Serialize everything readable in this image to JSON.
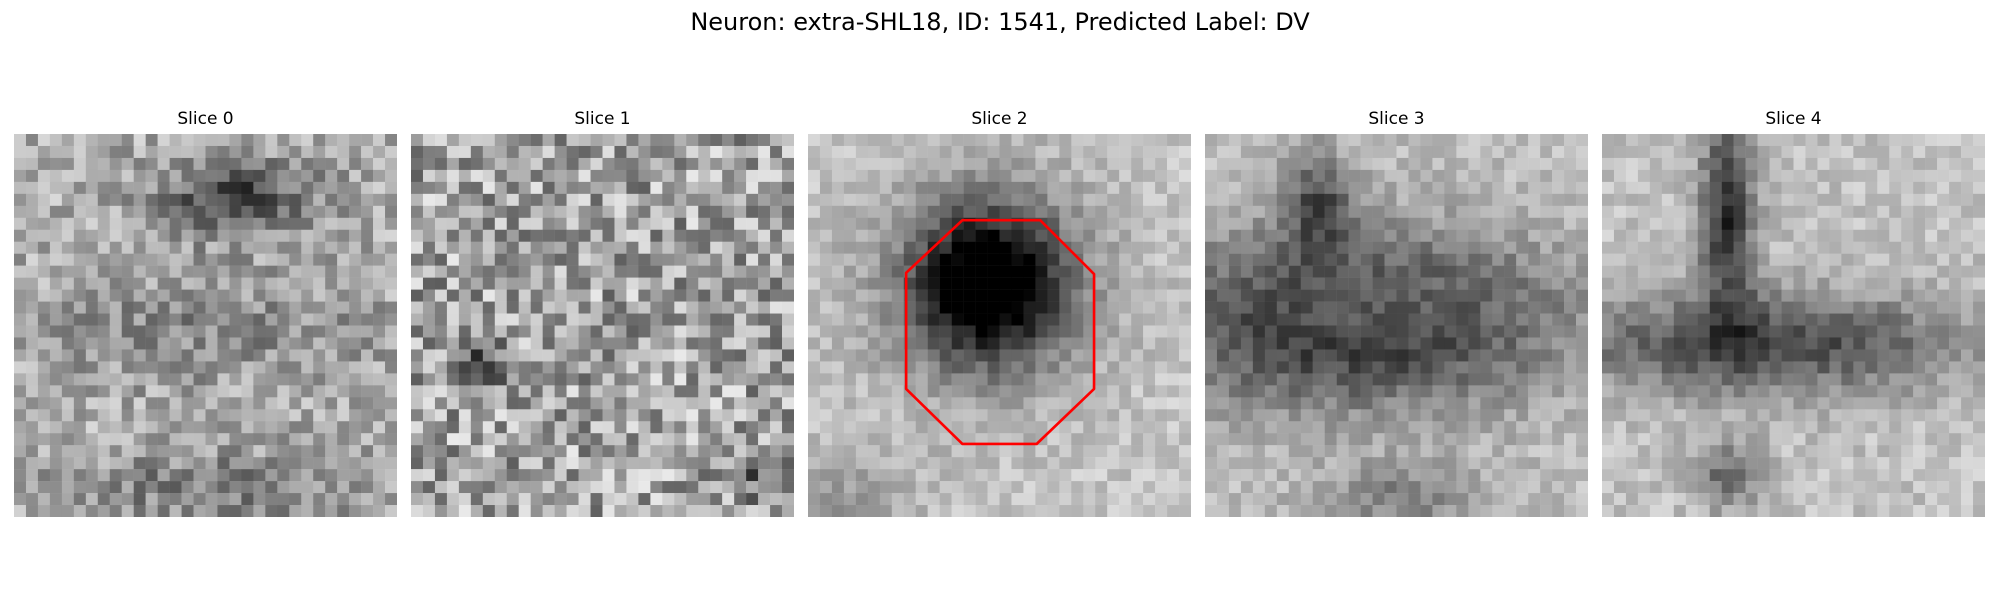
{
  "figure": {
    "title": "Neuron: extra-SHL18, ID: 1541, Predicted Label: DV"
  },
  "panels": [
    {
      "title": "Slice 0",
      "pattern": "noise-dark-band"
    },
    {
      "title": "Slice 1",
      "pattern": "noise-speckle"
    },
    {
      "title": "Slice 2",
      "pattern": "dark-blob-with-outline"
    },
    {
      "title": "Slice 3",
      "pattern": "dark-ring-band"
    },
    {
      "title": "Slice 4",
      "pattern": "dark-t-junction"
    }
  ],
  "colors": {
    "outline": "#ff0000"
  },
  "colormap": "gray"
}
